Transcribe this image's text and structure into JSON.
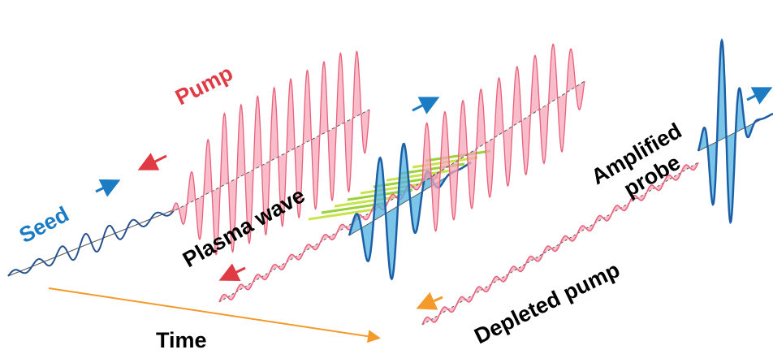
{
  "labels": {
    "pump": "Pump",
    "seed": "Seed",
    "plasma_wave": "Plasma wave",
    "amplified_probe": [
      "Amplified",
      "probe"
    ],
    "depleted_pump": "Depleted pump",
    "time": "Time"
  }
}
